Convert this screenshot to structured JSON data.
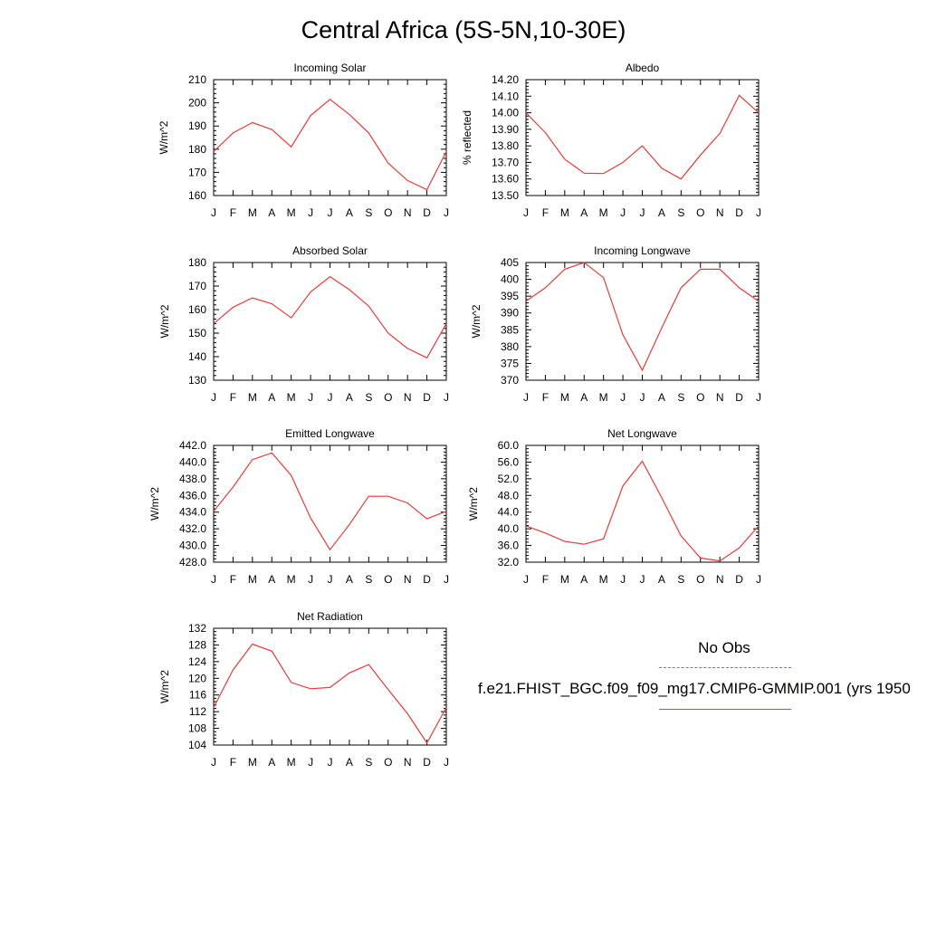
{
  "title": "Central Africa (5S-5N,10-30E)",
  "legend": {
    "obs_label": "No Obs",
    "model_label": "f.e21.FHIST_BGC.f09_f09_mg17.CMIP6-GMMIP.001 (yrs 1950",
    "obs_color": "#6d6df0",
    "model_color": "#e83a3a"
  },
  "chart_data": [
    {
      "type": "line",
      "title": "Incoming Solar",
      "ylabel": "W/m^2",
      "categories": [
        "J",
        "F",
        "M",
        "A",
        "M",
        "J",
        "J",
        "A",
        "S",
        "O",
        "N",
        "D",
        "J"
      ],
      "ylim": [
        160,
        210
      ],
      "yticks": [
        "160",
        "170",
        "180",
        "190",
        "200",
        "210"
      ],
      "series": [
        {
          "values": [
            179,
            187,
            191.5,
            188.5,
            181,
            194.5,
            201.5,
            195,
            187,
            174,
            166.5,
            162.5,
            179
          ]
        }
      ]
    },
    {
      "type": "line",
      "title": "Albedo",
      "ylabel": "% reflected",
      "categories": [
        "J",
        "F",
        "M",
        "A",
        "M",
        "J",
        "J",
        "A",
        "S",
        "O",
        "N",
        "D",
        "J"
      ],
      "ylim": [
        13.5,
        14.2
      ],
      "yticks": [
        "13.50",
        "13.60",
        "13.70",
        "13.80",
        "13.90",
        "14.00",
        "14.10",
        "14.20"
      ],
      "series": [
        {
          "values": [
            14.0,
            13.88,
            13.72,
            13.635,
            13.633,
            13.7,
            13.8,
            13.665,
            13.6,
            13.745,
            13.875,
            14.105,
            14.0
          ]
        }
      ]
    },
    {
      "type": "line",
      "title": "Absorbed Solar",
      "ylabel": "W/m^2",
      "categories": [
        "J",
        "F",
        "M",
        "A",
        "M",
        "J",
        "J",
        "A",
        "S",
        "O",
        "N",
        "D",
        "J"
      ],
      "ylim": [
        130,
        180
      ],
      "yticks": [
        "130",
        "140",
        "150",
        "160",
        "170",
        "180"
      ],
      "series": [
        {
          "values": [
            154,
            161,
            165,
            162.5,
            156.5,
            167.5,
            174,
            168.5,
            161.5,
            150,
            143.5,
            139.5,
            154
          ]
        }
      ]
    },
    {
      "type": "line",
      "title": "Incoming Longwave",
      "ylabel": "W/m^2",
      "categories": [
        "J",
        "F",
        "M",
        "A",
        "M",
        "J",
        "J",
        "A",
        "S",
        "O",
        "N",
        "D",
        "J"
      ],
      "ylim": [
        370,
        405
      ],
      "yticks": [
        "370",
        "375",
        "380",
        "385",
        "390",
        "395",
        "400",
        "405"
      ],
      "series": [
        {
          "values": [
            393.5,
            397.5,
            403,
            405,
            400.5,
            383.5,
            373,
            385.5,
            397.5,
            403,
            403,
            397.5,
            393.5
          ]
        }
      ]
    },
    {
      "type": "line",
      "title": "Emitted Longwave",
      "ylabel": "W/m^2",
      "categories": [
        "J",
        "F",
        "M",
        "A",
        "M",
        "J",
        "J",
        "A",
        "S",
        "O",
        "N",
        "D",
        "J"
      ],
      "ylim": [
        428,
        442
      ],
      "yticks": [
        "428.0",
        "430.0",
        "432.0",
        "434.0",
        "436.0",
        "438.0",
        "440.0",
        "442.0"
      ],
      "series": [
        {
          "values": [
            434.1,
            437.0,
            440.3,
            441.1,
            438.4,
            433.3,
            429.5,
            432.5,
            435.9,
            435.9,
            435.1,
            433.2,
            434.1
          ]
        }
      ]
    },
    {
      "type": "line",
      "title": "Net Longwave",
      "ylabel": "W/m^2",
      "categories": [
        "J",
        "F",
        "M",
        "A",
        "M",
        "J",
        "J",
        "A",
        "S",
        "O",
        "N",
        "D",
        "J"
      ],
      "ylim": [
        32,
        60
      ],
      "yticks": [
        "32.0",
        "36.0",
        "40.0",
        "44.0",
        "48.0",
        "52.0",
        "56.0",
        "60.0"
      ],
      "series": [
        {
          "values": [
            40.7,
            39.0,
            37.0,
            36.3,
            37.6,
            50.3,
            56.2,
            47.5,
            38.3,
            33.0,
            32.3,
            35.4,
            40.7
          ]
        }
      ]
    },
    {
      "type": "line",
      "title": "Net Radiation",
      "ylabel": "W/m^2",
      "categories": [
        "J",
        "F",
        "M",
        "A",
        "M",
        "J",
        "J",
        "A",
        "S",
        "O",
        "N",
        "D",
        "J"
      ],
      "ylim": [
        104,
        132
      ],
      "yticks": [
        "104",
        "108",
        "112",
        "116",
        "120",
        "124",
        "128",
        "132"
      ],
      "series": [
        {
          "values": [
            113,
            122,
            128.2,
            126.5,
            119,
            117.5,
            117.8,
            121.3,
            123.3,
            117.3,
            111.5,
            104.5,
            113
          ]
        }
      ]
    }
  ]
}
